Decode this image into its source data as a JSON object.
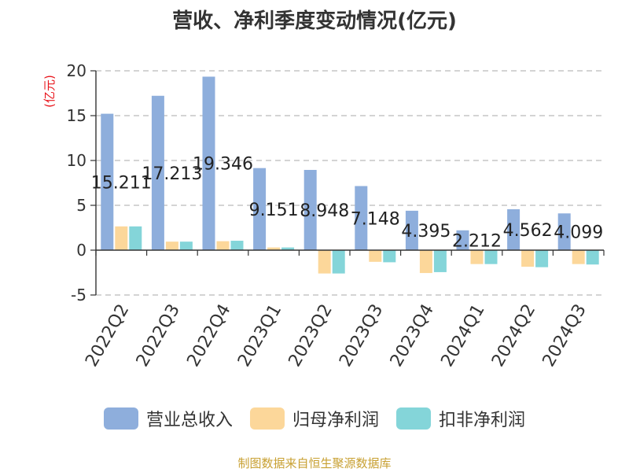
{
  "chart_data": {
    "type": "bar",
    "title": "营收、净利季度变动情况(亿元)",
    "ylabel": "(亿元)",
    "xlabel": "",
    "ylim": [
      -5,
      20
    ],
    "yticks": [
      -5,
      0,
      5,
      10,
      15,
      20
    ],
    "grid": true,
    "legend_position": "bottom",
    "categories": [
      "2022Q2",
      "2022Q3",
      "2022Q4",
      "2023Q1",
      "2023Q2",
      "2023Q3",
      "2023Q4",
      "2024Q1",
      "2024Q2",
      "2024Q3"
    ],
    "series": [
      {
        "name": "营业总收入",
        "color": "#8eaedc",
        "values": [
          15.211,
          17.213,
          19.346,
          9.151,
          8.948,
          7.148,
          4.395,
          2.212,
          4.562,
          4.099
        ],
        "labels": [
          "15.211",
          "17.213",
          "19.346",
          "9.151",
          "8.948",
          "7.148",
          "4.395",
          "2.212",
          "4.562",
          "4.099"
        ]
      },
      {
        "name": "归母净利润",
        "color": "#fcd79a",
        "values": [
          2.65,
          0.95,
          1.0,
          0.3,
          -2.6,
          -1.3,
          -2.55,
          -1.55,
          -1.85,
          -1.55
        ]
      },
      {
        "name": "扣非净利润",
        "color": "#84d5d9",
        "values": [
          2.65,
          0.95,
          1.05,
          0.3,
          -2.6,
          -1.35,
          -2.45,
          -1.55,
          -1.9,
          -1.6
        ]
      }
    ]
  },
  "source_text": "制图数据来自恒生聚源数据库"
}
